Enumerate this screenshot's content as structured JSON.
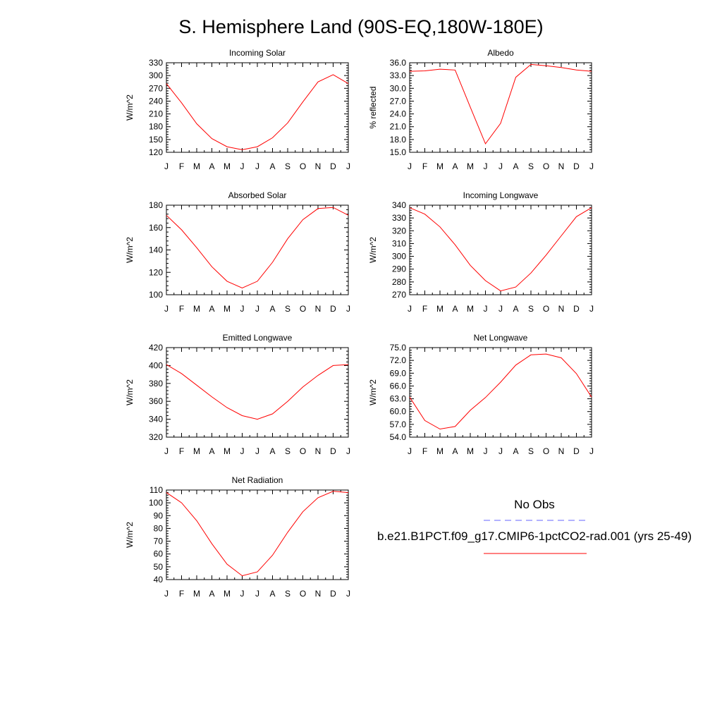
{
  "title": "S. Hemisphere Land (90S-EQ,180W-180E)",
  "legend": {
    "obs_label": "No Obs",
    "model_label": "b.e21.B1PCT.f09_g17.CMIP6-1pctCO2-rad.001 (yrs 25-49)",
    "obs_color": "#6666ff",
    "model_color": "#ff0000"
  },
  "chart_data": [
    {
      "type": "line",
      "title": "Incoming Solar",
      "ylabel": "W/m^2",
      "categories": [
        "J",
        "F",
        "M",
        "A",
        "M",
        "J",
        "J",
        "A",
        "S",
        "O",
        "N",
        "D",
        "J"
      ],
      "ylim": [
        120,
        330
      ],
      "yticks": [
        120,
        150,
        180,
        210,
        240,
        270,
        300,
        330
      ],
      "ytick_labels": [
        "120",
        "150",
        "180",
        "210",
        "240",
        "270",
        "300",
        "330"
      ],
      "series": [
        {
          "values": [
            281,
            236,
            187,
            152,
            133,
            126,
            133,
            154,
            189,
            238,
            285,
            302,
            281
          ]
        }
      ]
    },
    {
      "type": "line",
      "title": "Albedo",
      "ylabel": "% reflected",
      "categories": [
        "J",
        "F",
        "M",
        "A",
        "M",
        "J",
        "J",
        "A",
        "S",
        "O",
        "N",
        "D",
        "J"
      ],
      "ylim": [
        15.0,
        36.0
      ],
      "yticks": [
        15,
        18,
        21,
        24,
        27,
        30,
        33,
        36
      ],
      "ytick_labels": [
        "15.0",
        "18.0",
        "21.0",
        "24.0",
        "27.0",
        "30.0",
        "33.0",
        "36.0"
      ],
      "series": [
        {
          "values": [
            34.0,
            34.1,
            34.5,
            34.3,
            25.6,
            17.0,
            21.8,
            32.6,
            35.6,
            35.3,
            34.9,
            34.3,
            34.0
          ]
        }
      ]
    },
    {
      "type": "line",
      "title": "Absorbed Solar",
      "ylabel": "W/m^2",
      "categories": [
        "J",
        "F",
        "M",
        "A",
        "M",
        "J",
        "J",
        "A",
        "S",
        "O",
        "N",
        "D",
        "J"
      ],
      "ylim": [
        100,
        180
      ],
      "yticks": [
        100,
        120,
        140,
        160,
        180
      ],
      "ytick_labels": [
        "100",
        "120",
        "140",
        "160",
        "180"
      ],
      "series": [
        {
          "values": [
            171,
            158,
            142,
            125,
            112,
            106,
            112,
            129,
            150,
            167,
            177,
            178,
            171
          ]
        }
      ]
    },
    {
      "type": "line",
      "title": "Incoming Longwave",
      "ylabel": "W/m^2",
      "categories": [
        "J",
        "F",
        "M",
        "A",
        "M",
        "J",
        "J",
        "A",
        "S",
        "O",
        "N",
        "D",
        "J"
      ],
      "ylim": [
        270,
        340
      ],
      "yticks": [
        270,
        280,
        290,
        300,
        310,
        320,
        330,
        340
      ],
      "ytick_labels": [
        "270",
        "280",
        "290",
        "300",
        "310",
        "320",
        "330",
        "340"
      ],
      "series": [
        {
          "values": [
            338,
            333,
            323,
            309,
            293,
            281,
            273,
            276,
            287,
            301,
            316,
            331,
            338
          ]
        }
      ]
    },
    {
      "type": "line",
      "title": "Emitted Longwave",
      "ylabel": "W/m^2",
      "categories": [
        "J",
        "F",
        "M",
        "A",
        "M",
        "J",
        "J",
        "A",
        "S",
        "O",
        "N",
        "D",
        "J"
      ],
      "ylim": [
        320,
        420
      ],
      "yticks": [
        320,
        340,
        360,
        380,
        400,
        420
      ],
      "ytick_labels": [
        "320",
        "340",
        "360",
        "380",
        "400",
        "420"
      ],
      "series": [
        {
          "values": [
            401,
            391,
            378,
            365,
            353,
            344,
            340,
            346,
            360,
            376,
            389,
            400,
            401
          ]
        }
      ]
    },
    {
      "type": "line",
      "title": "Net Longwave",
      "ylabel": "W/m^2",
      "categories": [
        "J",
        "F",
        "M",
        "A",
        "M",
        "J",
        "J",
        "A",
        "S",
        "O",
        "N",
        "D",
        "J"
      ],
      "ylim": [
        54.0,
        75.0
      ],
      "yticks": [
        54,
        57,
        60,
        63,
        66,
        69,
        72,
        75
      ],
      "ytick_labels": [
        "54.0",
        "57.0",
        "60.0",
        "63.0",
        "66.0",
        "69.0",
        "72.0",
        "75.0"
      ],
      "series": [
        {
          "values": [
            63.4,
            57.9,
            55.9,
            56.5,
            60.3,
            63.3,
            66.9,
            70.9,
            73.3,
            73.5,
            72.6,
            68.9,
            63.4
          ]
        }
      ]
    },
    {
      "type": "line",
      "title": "Net Radiation",
      "ylabel": "W/m^2",
      "categories": [
        "J",
        "F",
        "M",
        "A",
        "M",
        "J",
        "J",
        "A",
        "S",
        "O",
        "N",
        "D",
        "J"
      ],
      "ylim": [
        40,
        110
      ],
      "yticks": [
        40,
        50,
        60,
        70,
        80,
        90,
        100,
        110
      ],
      "ytick_labels": [
        "40",
        "50",
        "60",
        "70",
        "80",
        "90",
        "100",
        "110"
      ],
      "series": [
        {
          "values": [
            108,
            100,
            86,
            68,
            52,
            43,
            46,
            59,
            77,
            93,
            104,
            109,
            108
          ]
        }
      ]
    }
  ]
}
